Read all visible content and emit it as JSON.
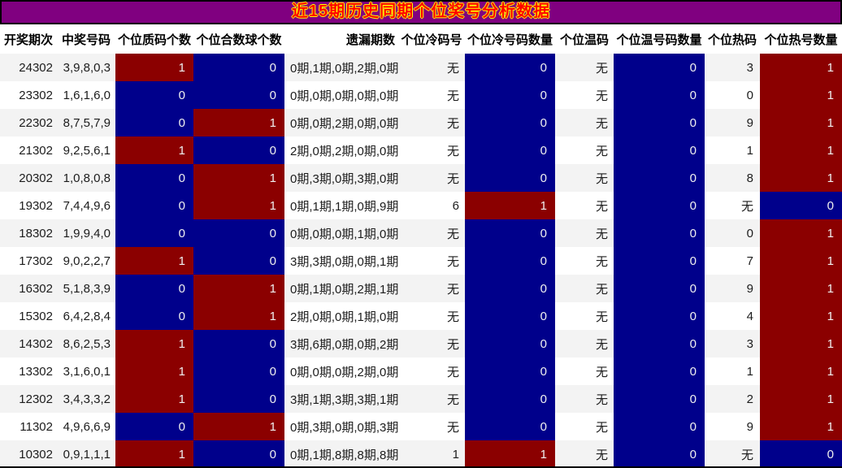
{
  "title": "近15期历史同期个位奖号分析数据",
  "colors": {
    "title_bg": "#800080",
    "title_text": "#FF0000",
    "title_glow": "#FFFF00",
    "hot_red": "#8B0000",
    "cold_blue": "#00008B",
    "row_stripe": "#F3F3F3"
  },
  "chart_data": {
    "type": "table",
    "title": "近15期历史同期个位奖号分析数据",
    "legend_note": "count cells: value>0 rendered dark-red, value=0 rendered dark-blue",
    "columns": [
      {
        "key": "period",
        "label": "开奖期次",
        "type": "plain"
      },
      {
        "key": "numbers",
        "label": "中奖号码",
        "type": "plain"
      },
      {
        "key": "prime-count",
        "label": "个位质码个数",
        "type": "count"
      },
      {
        "key": "composite-count",
        "label": "个位合数球个数",
        "type": "count"
      },
      {
        "key": "miss-periods",
        "label": "遗漏期数",
        "type": "plain"
      },
      {
        "key": "cold-number",
        "label": "个位冷码号",
        "type": "plain"
      },
      {
        "key": "cold-count",
        "label": "个位冷号码数量",
        "type": "count"
      },
      {
        "key": "warm-number",
        "label": "个位温码",
        "type": "plain"
      },
      {
        "key": "warm-count",
        "label": "个位温号码数量",
        "type": "count"
      },
      {
        "key": "hot-number",
        "label": "个位热码",
        "type": "plain"
      },
      {
        "key": "hot-count",
        "label": "个位热号数量",
        "type": "count"
      }
    ],
    "rows": [
      [
        "24302",
        "3,9,8,0,3",
        "1",
        "0",
        "0期,1期,0期,2期,0期",
        "无",
        "0",
        "无",
        "0",
        "3",
        "1"
      ],
      [
        "23302",
        "1,6,1,6,0",
        "0",
        "0",
        "0期,0期,0期,0期,0期",
        "无",
        "0",
        "无",
        "0",
        "0",
        "1"
      ],
      [
        "22302",
        "8,7,5,7,9",
        "0",
        "1",
        "0期,0期,2期,0期,0期",
        "无",
        "0",
        "无",
        "0",
        "9",
        "1"
      ],
      [
        "21302",
        "9,2,5,6,1",
        "1",
        "0",
        "2期,0期,2期,0期,0期",
        "无",
        "0",
        "无",
        "0",
        "1",
        "1"
      ],
      [
        "20302",
        "1,0,8,0,8",
        "0",
        "1",
        "0期,3期,0期,3期,0期",
        "无",
        "0",
        "无",
        "0",
        "8",
        "1"
      ],
      [
        "19302",
        "7,4,4,9,6",
        "0",
        "1",
        "0期,1期,1期,0期,9期",
        "6",
        "1",
        "无",
        "0",
        "无",
        "0"
      ],
      [
        "18302",
        "1,9,9,4,0",
        "0",
        "0",
        "0期,0期,0期,1期,0期",
        "无",
        "0",
        "无",
        "0",
        "0",
        "1"
      ],
      [
        "17302",
        "9,0,2,2,7",
        "1",
        "0",
        "3期,3期,0期,0期,1期",
        "无",
        "0",
        "无",
        "0",
        "7",
        "1"
      ],
      [
        "16302",
        "5,1,8,3,9",
        "0",
        "1",
        "0期,1期,0期,2期,1期",
        "无",
        "0",
        "无",
        "0",
        "9",
        "1"
      ],
      [
        "15302",
        "6,4,2,8,4",
        "0",
        "1",
        "2期,0期,0期,1期,0期",
        "无",
        "0",
        "无",
        "0",
        "4",
        "1"
      ],
      [
        "14302",
        "8,6,2,5,3",
        "1",
        "0",
        "3期,6期,0期,0期,2期",
        "无",
        "0",
        "无",
        "0",
        "3",
        "1"
      ],
      [
        "13302",
        "3,1,6,0,1",
        "1",
        "0",
        "0期,0期,0期,2期,0期",
        "无",
        "0",
        "无",
        "0",
        "1",
        "1"
      ],
      [
        "12302",
        "3,4,3,3,2",
        "1",
        "0",
        "3期,1期,3期,3期,1期",
        "无",
        "0",
        "无",
        "0",
        "2",
        "1"
      ],
      [
        "11302",
        "4,9,6,6,9",
        "0",
        "1",
        "0期,3期,0期,0期,3期",
        "无",
        "0",
        "无",
        "0",
        "9",
        "1"
      ],
      [
        "10302",
        "0,9,1,1,1",
        "1",
        "0",
        "0期,1期,8期,8期,8期",
        "1",
        "1",
        "无",
        "0",
        "无",
        "0"
      ]
    ]
  }
}
